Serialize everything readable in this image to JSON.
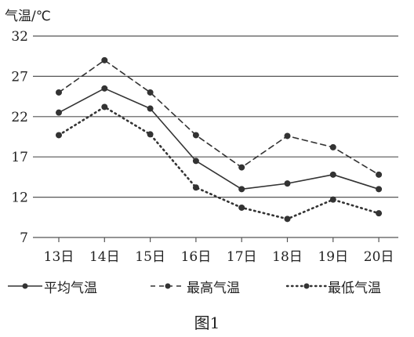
{
  "chart_data": {
    "type": "line",
    "ylabel": "气温/℃",
    "categories": [
      "13日",
      "14日",
      "15日",
      "16日",
      "17日",
      "18日",
      "19日",
      "20日"
    ],
    "yticks": [
      32,
      27,
      22,
      17,
      12,
      7
    ],
    "ylim": [
      7,
      32
    ],
    "grid": "horizontal",
    "legend_position": "bottom",
    "series": [
      {
        "name": "平均气温",
        "style": "solid",
        "values": [
          22.5,
          25.5,
          23,
          16.5,
          13,
          13.7,
          14.8,
          13
        ]
      },
      {
        "name": "最高气温",
        "style": "dashed",
        "values": [
          25,
          29,
          25,
          19.7,
          15.7,
          19.6,
          18.2,
          14.8
        ]
      },
      {
        "name": "最低气温",
        "style": "dotted",
        "values": [
          19.7,
          23.2,
          19.8,
          13.2,
          10.7,
          9.3,
          11.7,
          10
        ]
      }
    ],
    "caption": "图1",
    "colors": {
      "line": "#333333",
      "grid": "#555555"
    }
  }
}
